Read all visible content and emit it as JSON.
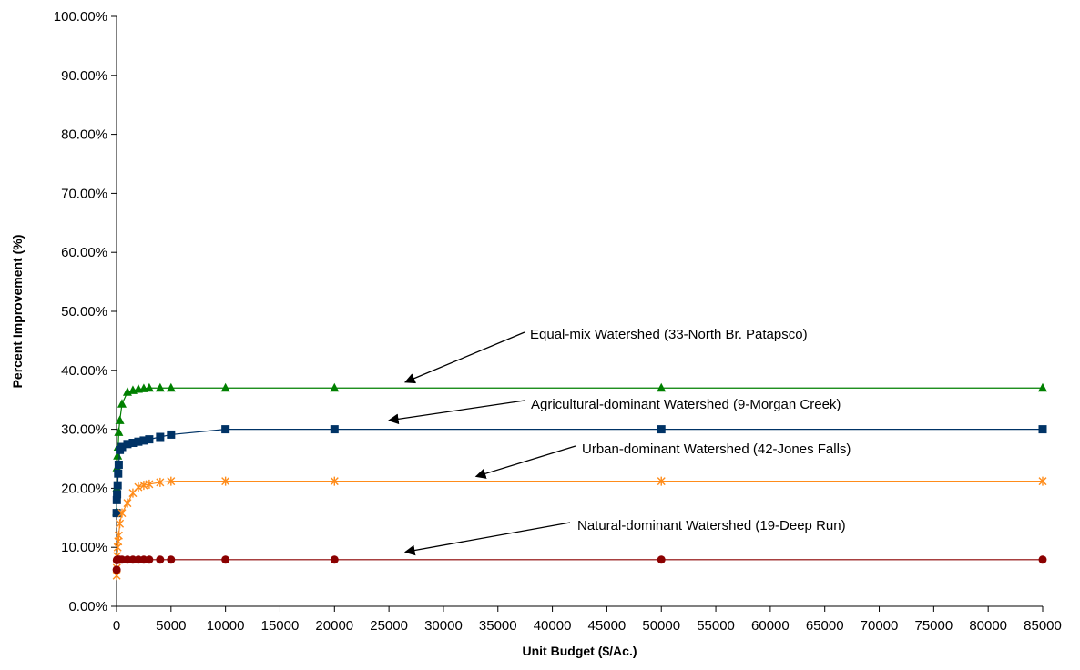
{
  "chart_data": {
    "type": "line",
    "title": "",
    "xlabel": "Unit Budget ($/Ac.)",
    "ylabel": "Percent Improvement (%)",
    "xlim": [
      0,
      85000
    ],
    "ylim": [
      0,
      100
    ],
    "x_ticks": [
      0,
      5000,
      10000,
      15000,
      20000,
      25000,
      30000,
      35000,
      40000,
      45000,
      50000,
      55000,
      60000,
      65000,
      70000,
      75000,
      80000,
      85000
    ],
    "x_tick_labels": [
      "0",
      "5000",
      "10000",
      "15000",
      "20000",
      "25000",
      "30000",
      "35000",
      "40000",
      "45000",
      "50000",
      "55000",
      "60000",
      "65000",
      "70000",
      "75000",
      "80000",
      "85000"
    ],
    "y_ticks": [
      0,
      10,
      20,
      30,
      40,
      50,
      60,
      70,
      80,
      90,
      100
    ],
    "y_tick_labels": [
      "0.00%",
      "10.00%",
      "20.00%",
      "30.00%",
      "40.00%",
      "50.00%",
      "60.00%",
      "70.00%",
      "80.00%",
      "90.00%",
      "100.00%"
    ],
    "grid": false,
    "legend": "none",
    "series": [
      {
        "name": "Equal-mix Watershed (33-North Br. Patapsco)",
        "color": "#008000",
        "marker": "triangle",
        "x": [
          10,
          25,
          50,
          100,
          150,
          200,
          300,
          500,
          1000,
          1500,
          2000,
          2500,
          3000,
          4000,
          5000,
          10000,
          20000,
          50000,
          85000
        ],
        "y": [
          16.0,
          20.0,
          23.5,
          25.5,
          27.0,
          29.5,
          31.5,
          34.3,
          36.3,
          36.6,
          36.8,
          36.9,
          37.0,
          37.0,
          37.0,
          37.0,
          37.0,
          37.0,
          37.0
        ]
      },
      {
        "name": "Agricultural-dominant Watershed (9-Morgan Creek)",
        "color": "#003366",
        "marker": "square",
        "x": [
          10,
          25,
          50,
          100,
          150,
          200,
          300,
          500,
          1000,
          1500,
          2000,
          2500,
          3000,
          4000,
          5000,
          10000,
          20000,
          50000,
          85000
        ],
        "y": [
          15.8,
          18.0,
          19.0,
          20.5,
          22.5,
          24.0,
          26.5,
          27.0,
          27.5,
          27.7,
          27.9,
          28.1,
          28.3,
          28.7,
          29.1,
          30.0,
          30.0,
          30.0,
          30.0
        ]
      },
      {
        "name": "Urban-dominant Watershed (42-Jones Falls)",
        "color": "#FF8C1A",
        "marker": "asterisk",
        "x": [
          10,
          25,
          50,
          100,
          150,
          200,
          300,
          500,
          1000,
          1500,
          2000,
          2500,
          3000,
          4000,
          5000,
          10000,
          20000,
          50000,
          85000
        ],
        "y": [
          5.2,
          6.5,
          8.5,
          10.0,
          11.0,
          12.0,
          14.0,
          15.8,
          17.5,
          19.2,
          20.2,
          20.5,
          20.7,
          21.0,
          21.2,
          21.2,
          21.2,
          21.2,
          21.2
        ]
      },
      {
        "name": "Natural-dominant Watershed (19-Deep Run)",
        "color": "#8B0000",
        "marker": "circle",
        "x": [
          10,
          25,
          50,
          100,
          150,
          200,
          300,
          500,
          1000,
          1500,
          2000,
          2500,
          3000,
          4000,
          5000,
          10000,
          20000,
          50000,
          85000
        ],
        "y": [
          6.2,
          7.8,
          7.9,
          7.9,
          7.9,
          7.9,
          7.9,
          7.9,
          7.9,
          7.9,
          7.9,
          7.9,
          7.9,
          7.9,
          7.9,
          7.9,
          7.9,
          7.9,
          7.9
        ]
      }
    ],
    "annotations": [
      {
        "text": "Equal-mix Watershed (33-North Br. Patapsco)",
        "arrow_to": [
          26500,
          38.0
        ]
      },
      {
        "text": "Agricultural-dominant Watershed (9-Morgan Creek)",
        "arrow_to": [
          25000,
          31.5
        ]
      },
      {
        "text": "Urban-dominant Watershed (42-Jones Falls)",
        "arrow_to": [
          33000,
          22.0
        ]
      },
      {
        "text": "Natural-dominant Watershed (19-Deep Run)",
        "arrow_to": [
          26500,
          9.2
        ]
      }
    ]
  }
}
